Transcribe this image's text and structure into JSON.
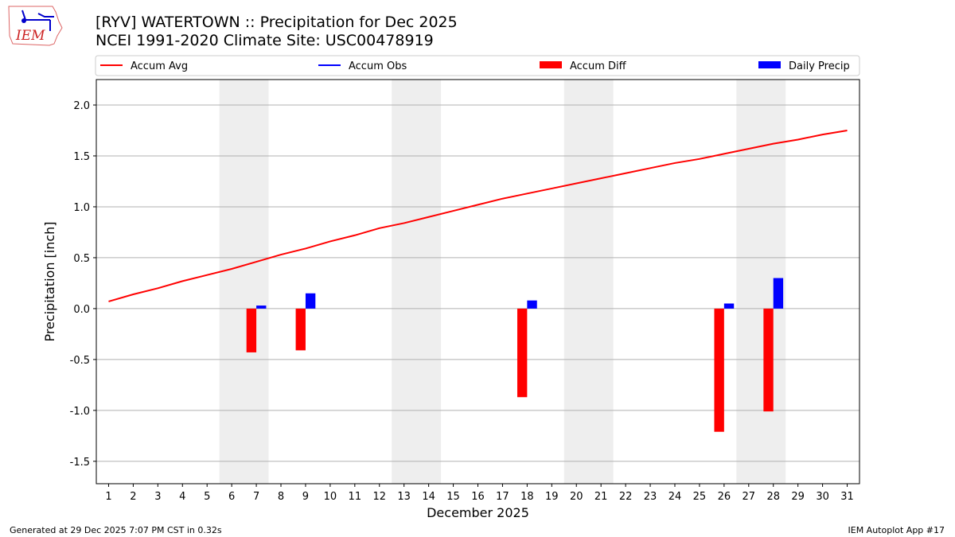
{
  "header": {
    "title": "[RYV] WATERTOWN :: Precipitation for Dec 2025",
    "subtitle": "NCEI 1991-2020 Climate Site: USC00478919",
    "logo_text": "IEM"
  },
  "footer": {
    "left": "Generated at 29 Dec 2025 7:07 PM CST in 0.32s",
    "right": "IEM Autoplot App #17"
  },
  "chart_data": {
    "type": "bar",
    "xlabel": "December 2025",
    "ylabel": "Precipitation [inch]",
    "xlim": [
      0.5,
      31.5
    ],
    "ylim": [
      -1.72,
      2.25
    ],
    "yticks": [
      -1.5,
      -1.0,
      -0.5,
      0.0,
      0.5,
      1.0,
      1.5,
      2.0
    ],
    "xticks": [
      1,
      2,
      3,
      4,
      5,
      6,
      7,
      8,
      9,
      10,
      11,
      12,
      13,
      14,
      15,
      16,
      17,
      18,
      19,
      20,
      21,
      22,
      23,
      24,
      25,
      26,
      27,
      28,
      29,
      30,
      31
    ],
    "grid": "horizontal",
    "legend_placement": "top",
    "weekend_shading": [
      [
        6,
        7
      ],
      [
        13,
        14
      ],
      [
        20,
        21
      ],
      [
        27,
        28
      ]
    ],
    "colors": {
      "avg": "#ff0000",
      "obs": "#0000ff",
      "diff": "#ff0000",
      "daily": "#0000ff",
      "shade": "#eeeeee"
    },
    "legend": [
      "Accum Avg",
      "Accum Obs",
      "Accum Diff",
      "Daily Precip"
    ],
    "accum_avg": [
      0.07,
      0.14,
      0.2,
      0.27,
      0.33,
      0.39,
      0.46,
      0.53,
      0.59,
      0.66,
      0.72,
      0.79,
      0.84,
      0.9,
      0.96,
      1.02,
      1.08,
      1.13,
      1.18,
      1.23,
      1.28,
      1.33,
      1.38,
      1.43,
      1.47,
      1.52,
      1.57,
      1.62,
      1.66,
      1.71,
      1.75
    ],
    "accum_diff": [
      {
        "day": 7,
        "value": -0.43
      },
      {
        "day": 9,
        "value": -0.41
      },
      {
        "day": 18,
        "value": -0.87
      },
      {
        "day": 26,
        "value": -1.21
      },
      {
        "day": 28,
        "value": -1.01
      }
    ],
    "daily_precip": [
      {
        "day": 7,
        "value": 0.03
      },
      {
        "day": 9,
        "value": 0.15
      },
      {
        "day": 18,
        "value": 0.08
      },
      {
        "day": 26,
        "value": 0.05
      },
      {
        "day": 28,
        "value": 0.3
      }
    ]
  }
}
